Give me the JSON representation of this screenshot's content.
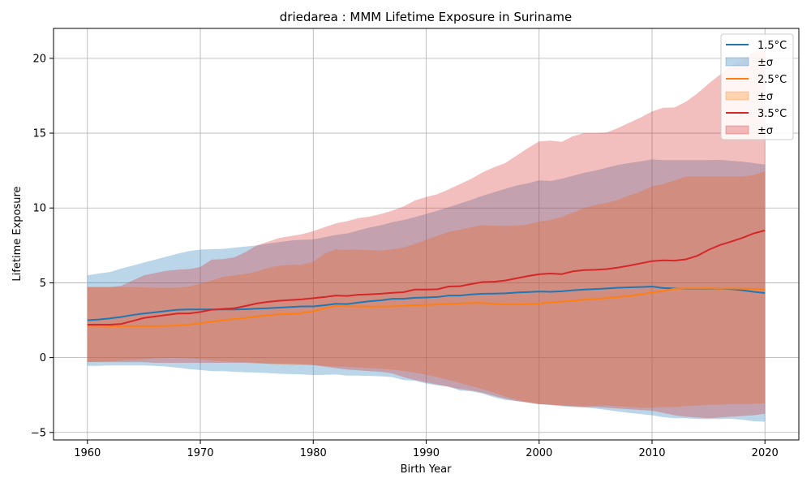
{
  "chart_data": {
    "type": "line",
    "title": "driedarea : MMM Lifetime Exposure in Suriname",
    "xlabel": "Birth Year",
    "ylabel": "Lifetime Exposure",
    "xlim": [
      1957,
      2023
    ],
    "ylim": [
      -5.5,
      22
    ],
    "xticks": [
      1960,
      1970,
      1980,
      1990,
      2000,
      2010,
      2020
    ],
    "yticks": [
      -5,
      0,
      5,
      10,
      15,
      20
    ],
    "grid": true,
    "legend_position": "top-right",
    "x": [
      1960,
      1961,
      1962,
      1963,
      1964,
      1965,
      1966,
      1967,
      1968,
      1969,
      1970,
      1971,
      1972,
      1973,
      1974,
      1975,
      1976,
      1977,
      1978,
      1979,
      1980,
      1981,
      1982,
      1983,
      1984,
      1985,
      1986,
      1987,
      1988,
      1989,
      1990,
      1991,
      1992,
      1993,
      1994,
      1995,
      1996,
      1997,
      1998,
      1999,
      2000,
      2001,
      2002,
      2003,
      2004,
      2005,
      2006,
      2007,
      2008,
      2009,
      2010,
      2011,
      2012,
      2013,
      2014,
      2015,
      2016,
      2017,
      2018,
      2019,
      2020
    ],
    "series": [
      {
        "name": "1.5°C",
        "band_label": "±σ",
        "color": "#1f77b4",
        "band_color": "#1f77b4",
        "mean": [
          2.5,
          2.55,
          2.62,
          2.72,
          2.85,
          2.95,
          3.03,
          3.12,
          3.2,
          3.22,
          3.22,
          3.22,
          3.22,
          3.22,
          3.24,
          3.27,
          3.3,
          3.34,
          3.38,
          3.42,
          3.42,
          3.5,
          3.6,
          3.58,
          3.68,
          3.77,
          3.83,
          3.93,
          3.93,
          4.0,
          4.02,
          4.05,
          4.15,
          4.15,
          4.22,
          4.27,
          4.28,
          4.3,
          4.35,
          4.38,
          4.42,
          4.4,
          4.43,
          4.5,
          4.55,
          4.58,
          4.62,
          4.67,
          4.7,
          4.72,
          4.75,
          4.65,
          4.62,
          4.6,
          4.6,
          4.6,
          4.6,
          4.58,
          4.5,
          4.4,
          4.32
        ],
        "upper": [
          5.5,
          5.62,
          5.72,
          5.95,
          6.15,
          6.35,
          6.55,
          6.75,
          6.95,
          7.12,
          7.22,
          7.25,
          7.27,
          7.35,
          7.42,
          7.5,
          7.62,
          7.72,
          7.82,
          7.88,
          7.9,
          8.05,
          8.2,
          8.3,
          8.5,
          8.7,
          8.85,
          9.05,
          9.2,
          9.38,
          9.6,
          9.82,
          10.05,
          10.3,
          10.55,
          10.82,
          11.05,
          11.28,
          11.5,
          11.65,
          11.85,
          11.8,
          11.95,
          12.15,
          12.35,
          12.5,
          12.7,
          12.88,
          13.0,
          13.12,
          13.25,
          13.2,
          13.2,
          13.2,
          13.2,
          13.2,
          13.22,
          13.15,
          13.1,
          13.0,
          12.9
        ],
        "lower": [
          -0.55,
          -0.55,
          -0.52,
          -0.52,
          -0.52,
          -0.52,
          -0.55,
          -0.6,
          -0.67,
          -0.77,
          -0.83,
          -0.9,
          -0.9,
          -0.95,
          -0.98,
          -1.0,
          -1.03,
          -1.08,
          -1.1,
          -1.12,
          -1.17,
          -1.15,
          -1.13,
          -1.2,
          -1.2,
          -1.22,
          -1.25,
          -1.3,
          -1.5,
          -1.55,
          -1.73,
          -1.85,
          -1.95,
          -2.2,
          -2.25,
          -2.4,
          -2.65,
          -2.82,
          -2.9,
          -3.0,
          -3.12,
          -3.17,
          -3.25,
          -3.3,
          -3.33,
          -3.4,
          -3.5,
          -3.6,
          -3.7,
          -3.77,
          -3.85,
          -3.98,
          -4.05,
          -4.05,
          -4.1,
          -4.1,
          -4.1,
          -4.08,
          -4.15,
          -4.25,
          -4.28
        ]
      },
      {
        "name": "2.5°C",
        "band_label": "±σ",
        "color": "#ff7f0e",
        "band_color": "#ff7f0e",
        "mean": [
          2.12,
          2.12,
          2.1,
          2.1,
          2.1,
          2.1,
          2.1,
          2.12,
          2.15,
          2.2,
          2.3,
          2.4,
          2.5,
          2.58,
          2.65,
          2.75,
          2.83,
          2.9,
          2.93,
          2.98,
          3.1,
          3.3,
          3.45,
          3.43,
          3.42,
          3.4,
          3.42,
          3.42,
          3.45,
          3.5,
          3.52,
          3.55,
          3.6,
          3.62,
          3.65,
          3.65,
          3.6,
          3.55,
          3.55,
          3.58,
          3.62,
          3.68,
          3.75,
          3.8,
          3.87,
          3.92,
          3.98,
          4.05,
          4.12,
          4.22,
          4.35,
          4.45,
          4.6,
          4.62,
          4.62,
          4.63,
          4.6,
          4.62,
          4.6,
          4.6,
          4.55
        ],
        "upper": [
          4.72,
          4.72,
          4.72,
          4.72,
          4.72,
          4.7,
          4.68,
          4.68,
          4.68,
          4.75,
          4.95,
          5.15,
          5.4,
          5.5,
          5.6,
          5.75,
          6.0,
          6.15,
          6.2,
          6.2,
          6.4,
          6.95,
          7.25,
          7.2,
          7.22,
          7.18,
          7.15,
          7.25,
          7.35,
          7.6,
          7.88,
          8.15,
          8.4,
          8.55,
          8.72,
          8.85,
          8.82,
          8.8,
          8.82,
          8.9,
          9.1,
          9.2,
          9.4,
          9.7,
          10.0,
          10.2,
          10.35,
          10.55,
          10.85,
          11.1,
          11.45,
          11.6,
          11.85,
          12.1,
          12.1,
          12.1,
          12.1,
          12.1,
          12.1,
          12.2,
          12.45
        ],
        "lower": [
          -0.3,
          -0.28,
          -0.25,
          -0.2,
          -0.15,
          -0.1,
          -0.05,
          0.0,
          0.0,
          -0.05,
          -0.1,
          -0.2,
          -0.25,
          -0.28,
          -0.3,
          -0.35,
          -0.42,
          -0.45,
          -0.5,
          -0.5,
          -0.5,
          -0.55,
          -0.6,
          -0.62,
          -0.65,
          -0.7,
          -0.75,
          -0.8,
          -0.9,
          -1.0,
          -1.15,
          -1.3,
          -1.5,
          -1.7,
          -1.9,
          -2.1,
          -2.35,
          -2.6,
          -2.8,
          -3.0,
          -3.1,
          -3.15,
          -3.2,
          -3.25,
          -3.25,
          -3.22,
          -3.2,
          -3.25,
          -3.3,
          -3.35,
          -3.35,
          -3.3,
          -3.3,
          -3.25,
          -3.2,
          -3.15,
          -3.15,
          -3.1,
          -3.1,
          -3.1,
          -3.05
        ]
      },
      {
        "name": "3.5°C",
        "band_label": "±σ",
        "color": "#d62728",
        "band_color": "#d62728",
        "mean": [
          2.2,
          2.2,
          2.2,
          2.25,
          2.45,
          2.65,
          2.75,
          2.85,
          2.95,
          2.95,
          3.05,
          3.2,
          3.25,
          3.3,
          3.45,
          3.62,
          3.73,
          3.8,
          3.85,
          3.9,
          3.97,
          4.05,
          4.15,
          4.12,
          4.2,
          4.23,
          4.27,
          4.33,
          4.37,
          4.55,
          4.55,
          4.57,
          4.75,
          4.77,
          4.92,
          5.05,
          5.07,
          5.15,
          5.3,
          5.45,
          5.57,
          5.62,
          5.58,
          5.77,
          5.85,
          5.87,
          5.92,
          6.02,
          6.15,
          6.3,
          6.45,
          6.5,
          6.48,
          6.57,
          6.8,
          7.2,
          7.52,
          7.75,
          8.0,
          8.3,
          8.5
        ],
        "upper": [
          4.72,
          4.72,
          4.72,
          4.8,
          5.15,
          5.5,
          5.65,
          5.8,
          5.88,
          5.92,
          6.05,
          6.55,
          6.58,
          6.7,
          7.05,
          7.5,
          7.75,
          8.0,
          8.12,
          8.25,
          8.45,
          8.72,
          8.97,
          9.12,
          9.32,
          9.42,
          9.6,
          9.82,
          10.1,
          10.5,
          10.73,
          10.92,
          11.25,
          11.6,
          11.95,
          12.38,
          12.72,
          13.0,
          13.5,
          14.0,
          14.45,
          14.5,
          14.42,
          14.8,
          15.0,
          15.0,
          15.05,
          15.35,
          15.7,
          16.05,
          16.45,
          16.7,
          16.72,
          17.1,
          17.65,
          18.3,
          18.9,
          19.5,
          19.9,
          20.4,
          20.5
        ],
        "lower": [
          -0.3,
          -0.3,
          -0.3,
          -0.3,
          -0.3,
          -0.3,
          -0.35,
          -0.35,
          -0.35,
          -0.35,
          -0.35,
          -0.35,
          -0.35,
          -0.35,
          -0.35,
          -0.38,
          -0.4,
          -0.42,
          -0.42,
          -0.45,
          -0.5,
          -0.6,
          -0.7,
          -0.8,
          -0.85,
          -0.9,
          -0.95,
          -1.05,
          -1.3,
          -1.5,
          -1.65,
          -1.8,
          -1.95,
          -2.1,
          -2.2,
          -2.35,
          -2.55,
          -2.75,
          -2.9,
          -3.0,
          -3.1,
          -3.15,
          -3.2,
          -3.25,
          -3.3,
          -3.3,
          -3.35,
          -3.4,
          -3.45,
          -3.5,
          -3.55,
          -3.7,
          -3.85,
          -3.95,
          -4.0,
          -4.05,
          -4.0,
          -3.95,
          -3.9,
          -3.85,
          -3.75
        ]
      }
    ]
  }
}
